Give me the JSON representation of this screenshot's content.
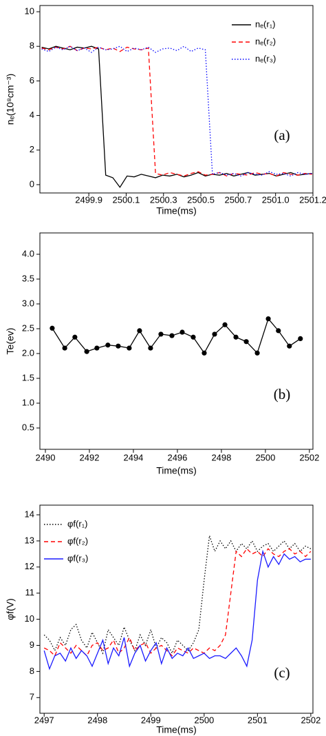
{
  "chart_data": [
    {
      "type": "line",
      "xlabel": "Time(ms)",
      "ylabel": "nₑ(10⁸cm⁻³)",
      "annotation": "(a)",
      "legend": "upper right",
      "x": [
        2499.64,
        2499.68,
        2499.72,
        2499.76,
        2499.8,
        2499.84,
        2499.88,
        2499.92,
        2499.96,
        2500,
        2500.04,
        2500.08,
        2500.12,
        2500.16,
        2500.2,
        2500.24,
        2500.28,
        2500.32,
        2500.36,
        2500.4,
        2500.44,
        2500.48,
        2500.52,
        2500.56,
        2500.6,
        2500.64,
        2500.68,
        2500.72,
        2500.76,
        2500.8,
        2500.84,
        2500.88,
        2500.92,
        2500.96,
        2501,
        2501.04,
        2501.08,
        2501.12,
        2501.16
      ],
      "series": [
        {
          "name": "nₑ(r₁)",
          "color": "#000000",
          "dash": "solid",
          "values": [
            7.95,
            7.85,
            8.0,
            7.9,
            7.8,
            7.95,
            7.9,
            8.0,
            7.85,
            0.55,
            0.4,
            -0.15,
            0.5,
            0.45,
            0.6,
            0.5,
            0.4,
            0.55,
            0.5,
            0.6,
            0.45,
            0.55,
            0.7,
            0.5,
            0.6,
            0.55,
            0.65,
            0.5,
            0.6,
            0.7,
            0.55,
            0.6,
            0.65,
            0.5,
            0.6,
            0.7,
            0.55,
            0.6,
            0.65
          ]
        },
        {
          "name": "nₑ(r₂)",
          "color": "#ff0000",
          "dash": "dashed",
          "values": [
            7.9,
            7.8,
            7.95,
            7.85,
            8.0,
            7.75,
            7.9,
            7.85,
            7.95,
            7.8,
            7.9,
            7.7,
            7.95,
            7.85,
            7.8,
            7.9,
            0.65,
            0.55,
            0.7,
            0.6,
            0.5,
            0.65,
            0.75,
            0.55,
            0.6,
            0.7,
            0.5,
            0.65,
            0.6,
            0.55,
            0.7,
            0.6,
            0.65,
            0.5,
            0.7,
            0.6,
            0.55,
            0.65,
            0.6
          ]
        },
        {
          "name": "nₑ(r₃)",
          "color": "#0000ff",
          "dash": "dotted",
          "values": [
            7.85,
            7.7,
            7.95,
            7.8,
            8.0,
            7.75,
            7.9,
            7.65,
            7.95,
            7.8,
            7.85,
            8.0,
            7.7,
            7.9,
            7.8,
            7.95,
            7.65,
            7.85,
            7.9,
            7.75,
            8.0,
            7.7,
            7.9,
            7.8,
            0.6,
            0.7,
            0.55,
            0.65,
            0.5,
            0.7,
            0.6,
            0.55,
            0.75,
            0.6,
            0.65,
            0.5,
            0.7,
            0.6,
            0.65
          ]
        }
      ],
      "xlim": [
        2499.63,
        2501.165
      ],
      "xticks": [
        {
          "value": 2499.905,
          "label": "2499.9"
        },
        {
          "value": 2500.115,
          "label": "2500.1"
        },
        {
          "value": 2500.325,
          "label": "2500.3"
        },
        {
          "value": 2500.535,
          "label": "2500.5"
        },
        {
          "value": 2500.745,
          "label": "2500.7"
        },
        {
          "value": 2500.955,
          "label": "2501.0"
        },
        {
          "value": 2501.165,
          "label": "2501.2"
        }
      ],
      "ylim": [
        -0.48,
        10.36
      ],
      "yticks": [
        0,
        2,
        4,
        6,
        8,
        10
      ]
    },
    {
      "type": "line",
      "xlabel": "Time(ms)",
      "ylabel": "Te(ev)",
      "annotation": "(b)",
      "markers": true,
      "color": "#000000",
      "x": [
        2490.31,
        2490.88,
        2491.34,
        2491.88,
        2492.34,
        2492.84,
        2493.31,
        2493.81,
        2494.28,
        2494.78,
        2495.25,
        2495.75,
        2496.22,
        2496.72,
        2497.22,
        2497.69,
        2498.16,
        2498.66,
        2499.13,
        2499.63,
        2500.13,
        2500.59,
        2501.09,
        2501.59
      ],
      "values": [
        2.51,
        2.11,
        2.33,
        2.04,
        2.11,
        2.17,
        2.15,
        2.11,
        2.46,
        2.11,
        2.39,
        2.36,
        2.43,
        2.33,
        2.01,
        2.39,
        2.58,
        2.33,
        2.24,
        2.01,
        2.7,
        2.46,
        2.15,
        2.3
      ],
      "xlim": [
        2489.75,
        2502.16
      ],
      "xticks": [
        2490,
        2492,
        2494,
        2496,
        2498,
        2500,
        2502
      ],
      "ylim": [
        0.07,
        4.43
      ],
      "yticks": [
        0.5,
        {
          "value": 1,
          "label": "1.0"
        },
        1.5,
        {
          "value": 2,
          "label": "2.0"
        },
        2.5,
        {
          "value": 3,
          "label": "3.0"
        },
        3.5,
        {
          "value": 4,
          "label": "4.0"
        }
      ]
    },
    {
      "type": "line",
      "xlabel": "Time(ms)",
      "ylabel": "φf(V)",
      "annotation": "(c)",
      "legend": "upper left",
      "x": [
        2497,
        2497.1,
        2497.2,
        2497.3,
        2497.4,
        2497.5,
        2497.6,
        2497.7,
        2497.8,
        2497.9,
        2498,
        2498.1,
        2498.2,
        2498.3,
        2498.4,
        2498.5,
        2498.6,
        2498.7,
        2498.8,
        2498.9,
        2499,
        2499.1,
        2499.2,
        2499.3,
        2499.4,
        2499.5,
        2499.6,
        2499.7,
        2499.8,
        2499.9,
        2500,
        2500.1,
        2500.2,
        2500.3,
        2500.4,
        2500.5,
        2500.6,
        2500.7,
        2500.8,
        2500.9,
        2501,
        2501.1,
        2501.2,
        2501.3,
        2501.4,
        2501.5,
        2501.6,
        2501.7,
        2501.8,
        2501.9,
        2502
      ],
      "series": [
        {
          "name": "φf(r₁)",
          "color": "#000000",
          "dash": "dotted",
          "values": [
            9.4,
            9.2,
            8.8,
            9.3,
            9.0,
            9.6,
            9.8,
            9.2,
            8.9,
            9.5,
            9.1,
            8.7,
            9.6,
            9.3,
            9.0,
            9.7,
            9.2,
            8.8,
            9.4,
            9.0,
            9.6,
            8.9,
            9.3,
            9.1,
            8.7,
            9.2,
            9.0,
            8.8,
            9.1,
            9.6,
            11.5,
            13.2,
            12.6,
            13.0,
            12.7,
            13.0,
            12.6,
            12.9,
            12.7,
            13.0,
            12.6,
            12.8,
            12.9,
            12.6,
            12.8,
            13.0,
            12.7,
            12.9,
            12.6,
            12.8,
            12.7
          ]
        },
        {
          "name": "φf(r₂)",
          "color": "#ff0000",
          "dash": "dashed",
          "values": [
            8.9,
            8.8,
            8.6,
            9.1,
            8.9,
            8.7,
            9.0,
            8.8,
            8.6,
            9.0,
            9.1,
            8.8,
            8.9,
            9.2,
            8.7,
            8.9,
            9.3,
            8.8,
            9.0,
            9.1,
            8.7,
            8.9,
            9.0,
            8.8,
            8.6,
            8.9,
            8.8,
            8.7,
            8.9,
            8.8,
            8.7,
            8.9,
            8.8,
            9.0,
            9.4,
            11.0,
            12.6,
            12.4,
            12.7,
            12.5,
            12.6,
            12.4,
            12.7,
            12.5,
            12.4,
            12.6,
            12.7,
            12.5,
            12.6,
            12.4,
            12.6
          ]
        },
        {
          "name": "φf(r₃)",
          "color": "#1a1aff",
          "dash": "solid",
          "values": [
            8.8,
            8.1,
            8.6,
            8.7,
            8.4,
            8.9,
            8.5,
            8.8,
            8.6,
            8.2,
            8.7,
            9.2,
            8.3,
            8.9,
            8.6,
            9.3,
            8.2,
            8.7,
            9.0,
            8.4,
            8.8,
            9.1,
            8.3,
            8.9,
            8.5,
            8.7,
            8.6,
            8.9,
            8.5,
            8.6,
            8.7,
            8.5,
            8.6,
            8.6,
            8.5,
            8.7,
            8.9,
            8.6,
            8.2,
            9.2,
            11.5,
            12.6,
            12.0,
            12.4,
            12.1,
            12.5,
            12.3,
            12.4,
            12.2,
            12.3,
            12.3
          ]
        }
      ],
      "xlim": [
        2496.92,
        2502.04
      ],
      "xticks": [
        2497,
        2498,
        2499,
        2500,
        2501,
        2502
      ],
      "ylim": [
        6.4,
        14.37
      ],
      "yticks": [
        7,
        8,
        9,
        10,
        11,
        12,
        13,
        14
      ]
    }
  ]
}
